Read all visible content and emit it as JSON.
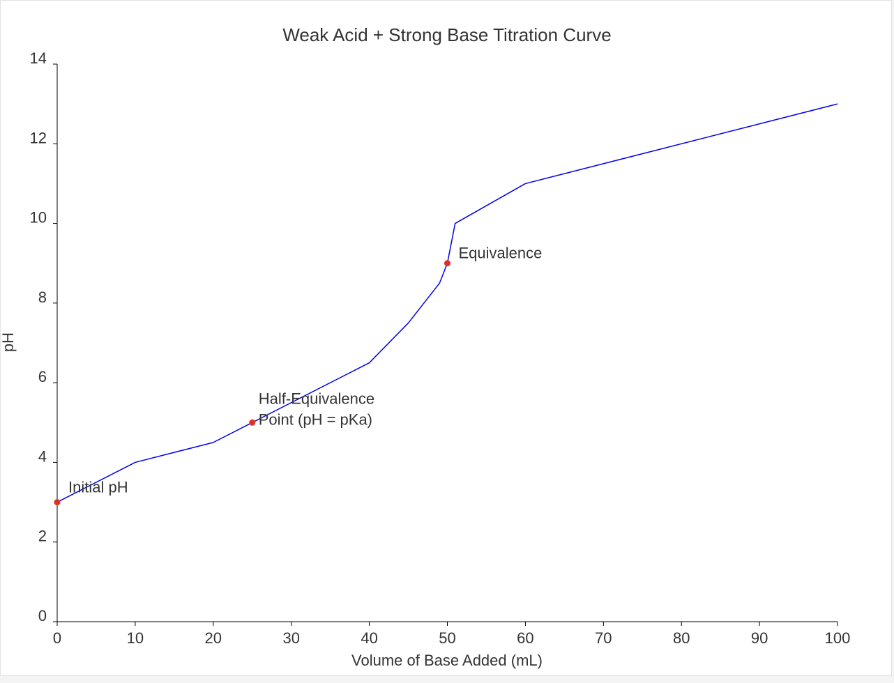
{
  "chart_data": {
    "type": "line",
    "title": "Weak Acid + Strong Base Titration Curve",
    "xlabel": "Volume of Base Added (mL)",
    "ylabel": "pH",
    "xlim": [
      0,
      100
    ],
    "ylim": [
      0,
      14
    ],
    "xticks": [
      0,
      10,
      20,
      30,
      40,
      50,
      60,
      70,
      80,
      90,
      100
    ],
    "yticks": [
      0,
      2,
      4,
      6,
      8,
      10,
      12,
      14
    ],
    "grid": false,
    "series": [
      {
        "color": "#0000ee",
        "x": [
          0,
          10,
          20,
          25,
          40,
          45,
          49,
          50,
          51,
          60,
          100
        ],
        "y": [
          3,
          4,
          4.5,
          5,
          6.5,
          7.5,
          8.5,
          9,
          10,
          11,
          13
        ]
      }
    ],
    "markers": [
      {
        "x": 0,
        "y": 3,
        "color": "#e03020"
      },
      {
        "x": 25,
        "y": 5,
        "color": "#e03020"
      },
      {
        "x": 50,
        "y": 9,
        "color": "#e03020"
      }
    ],
    "annotations": [
      {
        "lines": [
          "Initial pH"
        ],
        "x": 0,
        "y": 3
      },
      {
        "lines": [
          "Half-Equivalence",
          "Point (pH = pKa)"
        ],
        "x": 25,
        "y": 5
      },
      {
        "lines": [
          "Equivalence"
        ],
        "x": 50,
        "y": 9
      }
    ]
  }
}
